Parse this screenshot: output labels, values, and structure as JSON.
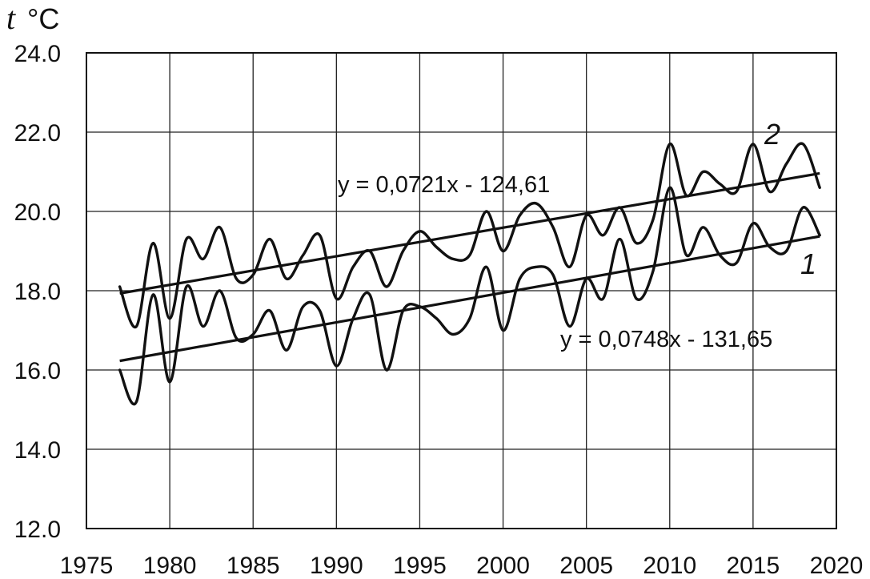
{
  "chart_data": {
    "type": "line",
    "title": "",
    "ylabel": {
      "symbol": "t",
      "unit": "°C"
    },
    "xlabel": "",
    "xlim": [
      1975,
      2020
    ],
    "ylim": [
      12,
      24
    ],
    "x_ticks": [
      1975,
      1980,
      1985,
      1990,
      1995,
      2000,
      2005,
      2010,
      2015,
      2020
    ],
    "x_tick_labels": [
      "1975",
      "1980",
      "1985",
      "1990",
      "1995",
      "2000",
      "2005",
      "2010",
      "2015",
      "2020"
    ],
    "y_ticks": [
      12,
      14,
      16,
      18,
      20,
      22,
      24
    ],
    "y_tick_labels": [
      "12.0",
      "14.0",
      "16.0",
      "18.0",
      "20.0",
      "22.0",
      "24.0"
    ],
    "grid": true,
    "series": [
      {
        "name": "1",
        "x": [
          1977,
          1978,
          1979,
          1980,
          1981,
          1982,
          1983,
          1984,
          1985,
          1986,
          1987,
          1988,
          1989,
          1990,
          1991,
          1992,
          1993,
          1994,
          1995,
          1996,
          1997,
          1998,
          1999,
          2000,
          2001,
          2002,
          2003,
          2004,
          2005,
          2006,
          2007,
          2008,
          2009,
          2010,
          2011,
          2012,
          2013,
          2014,
          2015,
          2016,
          2017,
          2018,
          2019
        ],
        "values": [
          16.0,
          15.2,
          17.9,
          15.7,
          18.1,
          17.1,
          18.0,
          16.8,
          16.9,
          17.5,
          16.5,
          17.6,
          17.5,
          16.1,
          17.3,
          17.9,
          16.0,
          17.5,
          17.6,
          17.3,
          16.9,
          17.3,
          18.6,
          17.0,
          18.3,
          18.6,
          18.4,
          17.1,
          18.3,
          17.8,
          19.3,
          17.8,
          18.5,
          20.6,
          18.9,
          19.6,
          18.9,
          18.7,
          19.7,
          19.1,
          19.0,
          20.1,
          19.4
        ]
      },
      {
        "name": "2",
        "x": [
          1977,
          1978,
          1979,
          1980,
          1981,
          1982,
          1983,
          1984,
          1985,
          1986,
          1987,
          1988,
          1989,
          1990,
          1991,
          1992,
          1993,
          1994,
          1995,
          1996,
          1997,
          1998,
          1999,
          2000,
          2001,
          2002,
          2003,
          2004,
          2005,
          2006,
          2007,
          2008,
          2009,
          2010,
          2011,
          2012,
          2013,
          2014,
          2015,
          2016,
          2017,
          2018,
          2019
        ],
        "values": [
          18.1,
          17.1,
          19.2,
          17.3,
          19.3,
          18.8,
          19.6,
          18.3,
          18.4,
          19.3,
          18.3,
          18.9,
          19.4,
          17.8,
          18.6,
          19.0,
          18.1,
          19.0,
          19.5,
          19.1,
          18.8,
          18.9,
          20.0,
          19.0,
          19.9,
          20.2,
          19.6,
          18.6,
          19.9,
          19.4,
          20.1,
          19.2,
          19.8,
          21.7,
          20.4,
          21.0,
          20.7,
          20.5,
          21.7,
          20.5,
          21.2,
          21.7,
          20.6
        ]
      }
    ],
    "trendlines": [
      {
        "series": "1",
        "equation": "y = 0,0748x - 131,65",
        "slope": 0.0748,
        "intercept": -131.65
      },
      {
        "series": "2",
        "equation": "y = 0,0721x - 124,61",
        "slope": 0.0721,
        "intercept": -124.61
      }
    ]
  }
}
